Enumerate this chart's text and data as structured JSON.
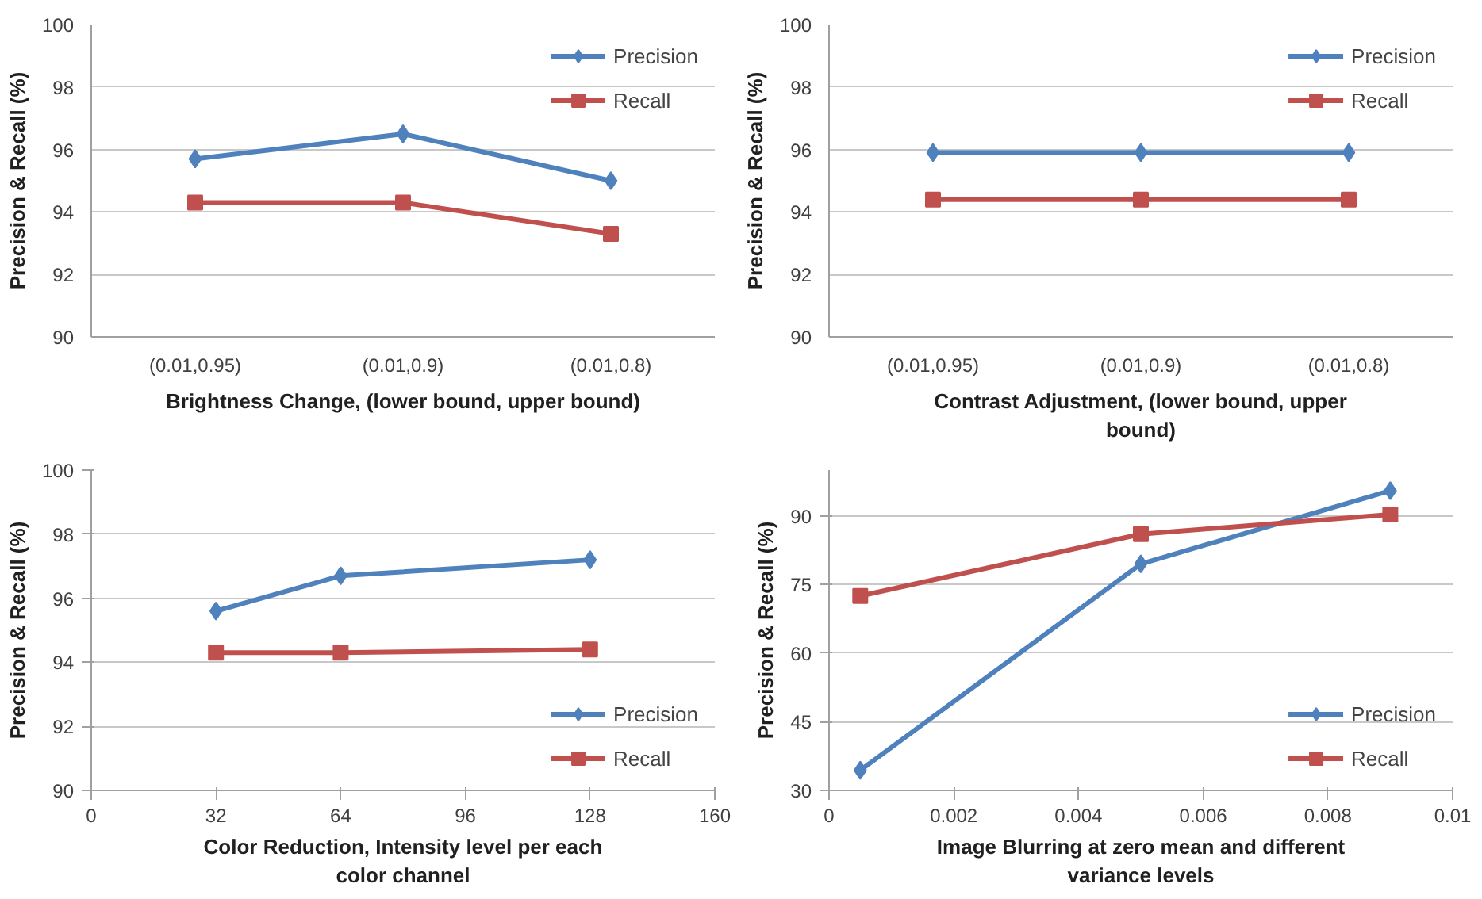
{
  "chart_data": [
    {
      "type": "line",
      "xlabel": "Brightness Change, (lower bound, upper bound)",
      "ylabel": "Precision & Recall (%)",
      "categories": [
        "(0.01,0.95)",
        "(0.01,0.9)",
        "(0.01,0.8)"
      ],
      "ylim": [
        90,
        100
      ],
      "yticks": [
        90,
        92,
        94,
        96,
        98,
        100
      ],
      "grid": "y",
      "legend": "top right",
      "series": [
        {
          "name": "Precision",
          "color": "#4f81bd",
          "marker": "diamond",
          "values": [
            95.7,
            96.5,
            95.0
          ]
        },
        {
          "name": "Recall",
          "color": "#c0504d",
          "marker": "square",
          "values": [
            94.3,
            94.3,
            93.3
          ]
        }
      ]
    },
    {
      "type": "line",
      "xlabel": "Contrast Adjustment, (lower bound, upper bound)",
      "ylabel": "Precision & Recall (%)",
      "categories": [
        "(0.01,0.95)",
        "(0.01,0.9)",
        "(0.01,0.8)"
      ],
      "ylim": [
        90,
        100
      ],
      "yticks": [
        90,
        92,
        94,
        96,
        98,
        100
      ],
      "grid": "y",
      "legend": "top right",
      "series": [
        {
          "name": "Precision",
          "color": "#4f81bd",
          "marker": "diamond",
          "values": [
            95.9,
            95.9,
            95.9
          ]
        },
        {
          "name": "Recall",
          "color": "#c0504d",
          "marker": "square",
          "values": [
            94.4,
            94.4,
            94.4
          ]
        }
      ]
    },
    {
      "type": "line",
      "xlabel": "Color Reduction, Intensity level per each color channel",
      "ylabel": "Precision & Recall (%)",
      "x": [
        32,
        64,
        128
      ],
      "xlim": [
        0,
        160
      ],
      "xticks": [
        0,
        32,
        64,
        96,
        128,
        160
      ],
      "ylim": [
        90,
        100
      ],
      "yticks": [
        90,
        92,
        94,
        96,
        98,
        100
      ],
      "grid": "y",
      "legend": "bottom right",
      "series": [
        {
          "name": "Precision",
          "color": "#4f81bd",
          "marker": "diamond",
          "values": [
            95.6,
            96.7,
            97.2
          ]
        },
        {
          "name": "Recall",
          "color": "#c0504d",
          "marker": "square",
          "values": [
            94.3,
            94.3,
            94.4
          ]
        }
      ]
    },
    {
      "type": "line",
      "xlabel": "Image Blurring at zero mean and different variance levels",
      "ylabel": "Precision & Recall (%)",
      "x": [
        0.0005,
        0.005,
        0.009
      ],
      "xlim": [
        0,
        0.01
      ],
      "xticks": [
        0,
        0.002,
        0.004,
        0.006,
        0.008,
        0.01
      ],
      "ylim": [
        30,
        100
      ],
      "yticks": [
        30,
        45,
        60,
        75,
        90
      ],
      "grid": "y",
      "legend": "bottom right",
      "series": [
        {
          "name": "Precision",
          "color": "#4f81bd",
          "marker": "diamond",
          "values": [
            34.4,
            79.5,
            95.5
          ]
        },
        {
          "name": "Recall",
          "color": "#c0504d",
          "marker": "square",
          "values": [
            72.5,
            86,
            90.3
          ]
        }
      ]
    }
  ]
}
